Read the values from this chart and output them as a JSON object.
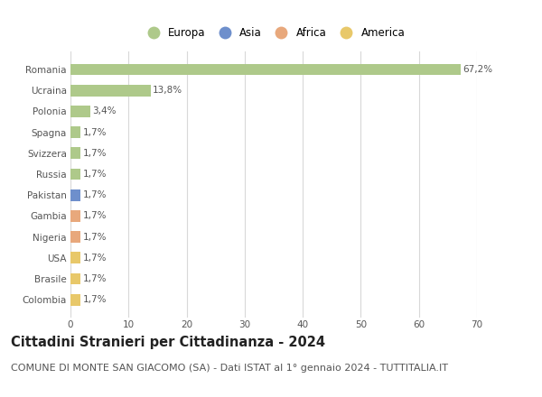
{
  "categories": [
    "Romania",
    "Ucraina",
    "Polonia",
    "Spagna",
    "Svizzera",
    "Russia",
    "Pakistan",
    "Gambia",
    "Nigeria",
    "USA",
    "Brasile",
    "Colombia"
  ],
  "values": [
    67.2,
    13.8,
    3.4,
    1.7,
    1.7,
    1.7,
    1.7,
    1.7,
    1.7,
    1.7,
    1.7,
    1.7
  ],
  "labels": [
    "67,2%",
    "13,8%",
    "3,4%",
    "1,7%",
    "1,7%",
    "1,7%",
    "1,7%",
    "1,7%",
    "1,7%",
    "1,7%",
    "1,7%",
    "1,7%"
  ],
  "colors": [
    "#aec98a",
    "#aec98a",
    "#aec98a",
    "#aec98a",
    "#aec98a",
    "#aec98a",
    "#6e8fcc",
    "#e8a87c",
    "#e8a87c",
    "#e8c86a",
    "#e8c86a",
    "#e8c86a"
  ],
  "legend_labels": [
    "Europa",
    "Asia",
    "Africa",
    "America"
  ],
  "legend_colors": [
    "#aec98a",
    "#6e8fcc",
    "#e8a87c",
    "#e8c86a"
  ],
  "xlim": [
    0,
    70
  ],
  "xticks": [
    0,
    10,
    20,
    30,
    40,
    50,
    60,
    70
  ],
  "title": "Cittadini Stranieri per Cittadinanza - 2024",
  "subtitle": "COMUNE DI MONTE SAN GIACOMO (SA) - Dati ISTAT al 1° gennaio 2024 - TUTTITALIA.IT",
  "title_fontsize": 10.5,
  "subtitle_fontsize": 8,
  "label_fontsize": 7.5,
  "tick_fontsize": 7.5,
  "legend_fontsize": 8.5,
  "background_color": "#ffffff",
  "plot_bg_color": "#ffffff",
  "grid_color": "#d8d8d8",
  "bar_height": 0.55,
  "text_color": "#555555",
  "title_color": "#222222"
}
